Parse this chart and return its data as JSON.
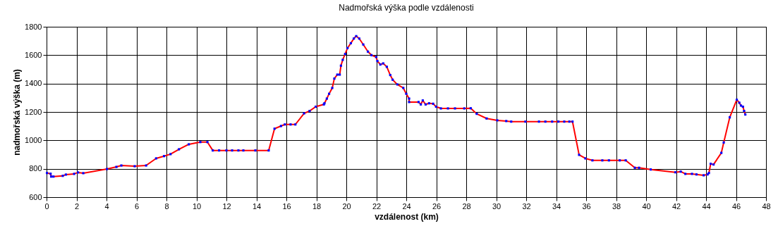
{
  "chart_data": {
    "type": "line",
    "title": "Nadmořská výška podle vzdálenosti",
    "xlabel": "vzdálenost (km)",
    "ylabel": "nadmořská výška (m)",
    "x": [
      0.03,
      0.27,
      0.31,
      0.46,
      1.08,
      1.29,
      1.84,
      2.1,
      2.45,
      4.03,
      4.66,
      4.99,
      5.88,
      6.64,
      7.31,
      7.84,
      8.27,
      8.83,
      9.49,
      10.26,
      10.73,
      11.09,
      11.51,
      12.0,
      12.38,
      12.8,
      13.13,
      13.93,
      14.82,
      15.21,
      15.64,
      15.9,
      16.28,
      16.6,
      17.18,
      17.55,
      17.96,
      18.5,
      18.54,
      18.7,
      18.85,
      19.06,
      19.2,
      19.4,
      19.56,
      19.64,
      19.76,
      19.92,
      20.08,
      20.3,
      20.5,
      20.66,
      20.86,
      21.13,
      21.44,
      21.68,
      21.99,
      22.07,
      22.27,
      22.46,
      22.7,
      22.93,
      23.09,
      23.4,
      23.8,
      24.0,
      24.19,
      24.19,
      24.82,
      24.97,
      25.1,
      25.29,
      25.52,
      25.79,
      25.99,
      26.31,
      26.78,
      27.25,
      27.87,
      28.3,
      28.7,
      29.36,
      30.07,
      30.67,
      31.0,
      31.95,
      32.85,
      33.28,
      33.73,
      34.15,
      34.54,
      34.88,
      35.09,
      35.53,
      35.95,
      36.42,
      37.08,
      37.52,
      38.24,
      38.64,
      39.25,
      39.53,
      40.31,
      41.96,
      42.31,
      42.62,
      43.06,
      43.36,
      43.84,
      44.1,
      44.19,
      44.31,
      44.5,
      45.02,
      45.18,
      45.58,
      46.05,
      46.22,
      46.33,
      46.46,
      46.54,
      46.62
    ],
    "series": [
      {
        "type": "line",
        "color": "#ff0000",
        "marker": "none",
        "values": [
          770,
          765,
          745,
          745,
          750,
          759,
          764,
          774,
          769,
          798,
          813,
          823,
          818,
          823,
          873,
          889,
          903,
          937,
          972,
          988,
          988,
          929,
          929,
          929,
          929,
          929,
          929,
          929,
          929,
          1082,
          1101,
          1112,
          1112,
          1112,
          1190,
          1207,
          1237,
          1253,
          1261,
          1294,
          1328,
          1369,
          1435,
          1463,
          1463,
          1526,
          1567,
          1608,
          1650,
          1684,
          1717,
          1734,
          1717,
          1675,
          1625,
          1600,
          1587,
          1559,
          1534,
          1542,
          1518,
          1460,
          1427,
          1394,
          1369,
          1328,
          1294,
          1270,
          1270,
          1253,
          1281,
          1253,
          1261,
          1258,
          1237,
          1225,
          1225,
          1225,
          1225,
          1226,
          1187,
          1154,
          1141,
          1136,
          1132,
          1132,
          1132,
          1132,
          1132,
          1132,
          1132,
          1132,
          1132,
          898,
          873,
          859,
          859,
          859,
          859,
          859,
          807,
          807,
          795,
          775,
          780,
          764,
          764,
          760,
          754,
          760,
          770,
          835,
          830,
          912,
          985,
          1162,
          1286,
          1265,
          1245,
          1237,
          1207,
          1182
        ]
      },
      {
        "type": "scatter",
        "color": "#0000ff",
        "marker": "square",
        "values": [
          770,
          765,
          745,
          745,
          750,
          759,
          764,
          774,
          769,
          798,
          813,
          823,
          818,
          823,
          873,
          889,
          903,
          937,
          972,
          988,
          988,
          929,
          929,
          929,
          929,
          929,
          929,
          929,
          929,
          1082,
          1101,
          1112,
          1112,
          1112,
          1190,
          1207,
          1237,
          1253,
          1261,
          1294,
          1328,
          1369,
          1435,
          1463,
          1463,
          1526,
          1567,
          1608,
          1650,
          1684,
          1717,
          1734,
          1717,
          1675,
          1625,
          1600,
          1587,
          1559,
          1534,
          1542,
          1518,
          1460,
          1427,
          1394,
          1369,
          1328,
          1294,
          1270,
          1270,
          1253,
          1281,
          1253,
          1261,
          1258,
          1237,
          1225,
          1225,
          1225,
          1225,
          1226,
          1187,
          1154,
          1141,
          1136,
          1132,
          1132,
          1132,
          1132,
          1132,
          1132,
          1132,
          1132,
          1132,
          898,
          873,
          859,
          859,
          859,
          859,
          859,
          807,
          807,
          795,
          775,
          780,
          764,
          764,
          760,
          754,
          760,
          770,
          835,
          830,
          912,
          985,
          1162,
          1286,
          1265,
          1245,
          1237,
          1207,
          1182
        ]
      }
    ],
    "xlim": [
      0,
      48
    ],
    "xticks": [
      0,
      2,
      4,
      6,
      8,
      10,
      12,
      14,
      16,
      18,
      20,
      22,
      24,
      26,
      28,
      30,
      32,
      34,
      36,
      38,
      40,
      42,
      44,
      46,
      48
    ],
    "ylim": [
      600,
      1800
    ],
    "yticks": [
      600,
      800,
      1000,
      1200,
      1400,
      1600,
      1800
    ],
    "grid": true
  }
}
